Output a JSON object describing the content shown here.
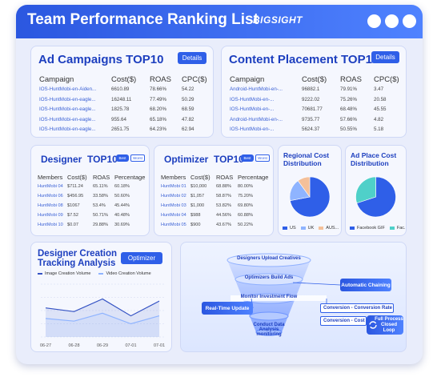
{
  "header": {
    "title": "Team Performance Ranking List",
    "logo": "BIGSIGHT"
  },
  "ad_campaigns": {
    "title": "Ad Campaigns TOP10",
    "button": "Details",
    "columns": [
      "Campaign",
      "Cost($)",
      "ROAS",
      "CPC($)"
    ],
    "rows": [
      [
        "IOS-HuntMobi-en-Aiden...",
        "6610.89",
        "78.66%",
        "54.22"
      ],
      [
        "IOS-HuntMobi-en-eagle...",
        "16248.11",
        "77.49%",
        "50.29"
      ],
      [
        "IOS-HuntMobi-en-eagle...",
        "1825.78",
        "68.20%",
        "68.59"
      ],
      [
        "IOS-HuntMobi-en-eagle...",
        "955.64",
        "65.18%",
        "47.82"
      ],
      [
        "IOS-HuntMobi-en-eagle...",
        "2651.75",
        "64.23%",
        "62.94"
      ]
    ]
  },
  "content_placement": {
    "title": "Content Placement TOP10",
    "button": "Details",
    "columns": [
      "Campaign",
      "Cost($)",
      "ROAS",
      "CPC($)"
    ],
    "rows": [
      [
        "Android-HuntMobi-en-...",
        "96882.1",
        "79.91%",
        "3.47"
      ],
      [
        "IOS-HuntMobi-en-...",
        "9222.02",
        "75.26%",
        "20.58"
      ],
      [
        "IOS-HuntMobi-en-...",
        "70681.77",
        "68.48%",
        "45.55"
      ],
      [
        "Android-HuntMobi-en-...",
        "9735.77",
        "57.66%",
        "4.82"
      ],
      [
        "IOS-HuntMobi-en-...",
        "5624.37",
        "50.55%",
        "5.18"
      ]
    ]
  },
  "designer": {
    "title": "Designer  TOP10",
    "buttons": [
      "Best",
      "Worst"
    ],
    "columns": [
      "Members",
      "Cost($)",
      "ROAS",
      "Percentage"
    ],
    "rows": [
      [
        "HuntMobi 04",
        "$711.24",
        "65.11%",
        "60.18%"
      ],
      [
        "HuntMobi 06",
        "$456.95",
        "33.58%",
        "50.60%"
      ],
      [
        "HuntMobi 08",
        "$1067",
        "53.4%",
        "45.44%"
      ],
      [
        "HuntMobi 09",
        "$7.52",
        "50.71%",
        "40.48%"
      ],
      [
        "HuntMobi 10",
        "$0.07",
        "29.88%",
        "30.69%"
      ]
    ]
  },
  "optimizer": {
    "title": "Optimizer  TOP10",
    "buttons": [
      "Best",
      "Worst"
    ],
    "columns": [
      "Members",
      "Cost($)",
      "ROAS",
      "Percentage"
    ],
    "rows": [
      [
        "HuntMobi 01",
        "$10,000",
        "68.88%",
        "80.00%"
      ],
      [
        "HuntMobi 02",
        "$1,057",
        "58.87%",
        "75.20%"
      ],
      [
        "HuntMobi 03",
        "$1,000",
        "53.82%",
        "69.80%"
      ],
      [
        "HuntMobi 04",
        "$988",
        "44.56%",
        "60.88%"
      ],
      [
        "HuntMobi 05",
        "$900",
        "43.67%",
        "50.22%"
      ]
    ]
  },
  "chart_data": [
    {
      "type": "pie",
      "title": "Regional Cost Distribution",
      "categories": [
        "US",
        "UK",
        "AUS..."
      ],
      "values": [
        72,
        18,
        10
      ],
      "colors": [
        "#2f5fe8",
        "#8fb4ff",
        "#f4c09a"
      ]
    },
    {
      "type": "pie",
      "title": "Ad Place Cost Distribution",
      "categories": [
        "Facebook GIF",
        "Fac..."
      ],
      "values": [
        70,
        30
      ],
      "colors": [
        "#2f5fe8",
        "#4fd0c9"
      ]
    },
    {
      "type": "line",
      "title": "Designer Creation Tracking Analysis",
      "categories": [
        "06-27",
        "06-28",
        "06-29",
        "07-01",
        "07-01"
      ],
      "series": [
        {
          "name": "Image Creation Volume",
          "color": "#3553c4",
          "values": [
            55,
            48,
            72,
            40,
            68
          ]
        },
        {
          "name": "Video Creation Volume",
          "color": "#8fb4ff",
          "values": [
            35,
            30,
            45,
            25,
            40
          ]
        }
      ],
      "ylim": [
        0,
        100
      ],
      "grid": true
    }
  ],
  "tracking_panel": {
    "button": "Optimizer"
  },
  "flow": {
    "steps": [
      "Designers Upload Creatives",
      "Optimizers Build Ads",
      "Monitor Investment Flow",
      "Conduct Data Analysis monitoring"
    ],
    "tags": [
      "Automatic Chaining",
      "Real-Time Update"
    ],
    "conversions": [
      "Conversion - Conversion Rate",
      "Conversion - Cost p..."
    ],
    "loop": "Full Process Closed Loop"
  }
}
